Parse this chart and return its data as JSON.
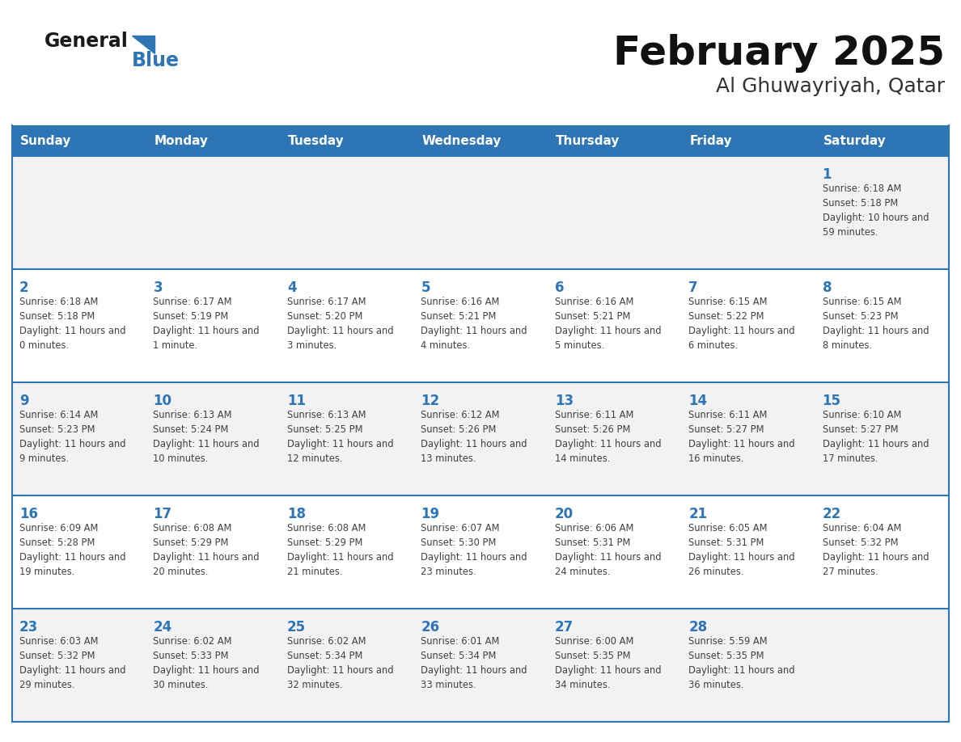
{
  "title": "February 2025",
  "subtitle": "Al Ghuwayriyah, Qatar",
  "days_of_week": [
    "Sunday",
    "Monday",
    "Tuesday",
    "Wednesday",
    "Thursday",
    "Friday",
    "Saturday"
  ],
  "header_bg": "#2E75B6",
  "header_text_color": "#FFFFFF",
  "row_bg_odd": "#F2F2F2",
  "row_bg_even": "#FFFFFF",
  "day_number_color": "#2E75B6",
  "text_color": "#404040",
  "border_color": "#2E75B6",
  "calendar_data": [
    [
      null,
      null,
      null,
      null,
      null,
      null,
      {
        "day": 1,
        "sunrise": "6:18 AM",
        "sunset": "5:18 PM",
        "daylight": "10 hours and 59 minutes."
      }
    ],
    [
      {
        "day": 2,
        "sunrise": "6:18 AM",
        "sunset": "5:18 PM",
        "daylight": "11 hours and 0 minutes."
      },
      {
        "day": 3,
        "sunrise": "6:17 AM",
        "sunset": "5:19 PM",
        "daylight": "11 hours and 1 minute."
      },
      {
        "day": 4,
        "sunrise": "6:17 AM",
        "sunset": "5:20 PM",
        "daylight": "11 hours and 3 minutes."
      },
      {
        "day": 5,
        "sunrise": "6:16 AM",
        "sunset": "5:21 PM",
        "daylight": "11 hours and 4 minutes."
      },
      {
        "day": 6,
        "sunrise": "6:16 AM",
        "sunset": "5:21 PM",
        "daylight": "11 hours and 5 minutes."
      },
      {
        "day": 7,
        "sunrise": "6:15 AM",
        "sunset": "5:22 PM",
        "daylight": "11 hours and 6 minutes."
      },
      {
        "day": 8,
        "sunrise": "6:15 AM",
        "sunset": "5:23 PM",
        "daylight": "11 hours and 8 minutes."
      }
    ],
    [
      {
        "day": 9,
        "sunrise": "6:14 AM",
        "sunset": "5:23 PM",
        "daylight": "11 hours and 9 minutes."
      },
      {
        "day": 10,
        "sunrise": "6:13 AM",
        "sunset": "5:24 PM",
        "daylight": "11 hours and 10 minutes."
      },
      {
        "day": 11,
        "sunrise": "6:13 AM",
        "sunset": "5:25 PM",
        "daylight": "11 hours and 12 minutes."
      },
      {
        "day": 12,
        "sunrise": "6:12 AM",
        "sunset": "5:26 PM",
        "daylight": "11 hours and 13 minutes."
      },
      {
        "day": 13,
        "sunrise": "6:11 AM",
        "sunset": "5:26 PM",
        "daylight": "11 hours and 14 minutes."
      },
      {
        "day": 14,
        "sunrise": "6:11 AM",
        "sunset": "5:27 PM",
        "daylight": "11 hours and 16 minutes."
      },
      {
        "day": 15,
        "sunrise": "6:10 AM",
        "sunset": "5:27 PM",
        "daylight": "11 hours and 17 minutes."
      }
    ],
    [
      {
        "day": 16,
        "sunrise": "6:09 AM",
        "sunset": "5:28 PM",
        "daylight": "11 hours and 19 minutes."
      },
      {
        "day": 17,
        "sunrise": "6:08 AM",
        "sunset": "5:29 PM",
        "daylight": "11 hours and 20 minutes."
      },
      {
        "day": 18,
        "sunrise": "6:08 AM",
        "sunset": "5:29 PM",
        "daylight": "11 hours and 21 minutes."
      },
      {
        "day": 19,
        "sunrise": "6:07 AM",
        "sunset": "5:30 PM",
        "daylight": "11 hours and 23 minutes."
      },
      {
        "day": 20,
        "sunrise": "6:06 AM",
        "sunset": "5:31 PM",
        "daylight": "11 hours and 24 minutes."
      },
      {
        "day": 21,
        "sunrise": "6:05 AM",
        "sunset": "5:31 PM",
        "daylight": "11 hours and 26 minutes."
      },
      {
        "day": 22,
        "sunrise": "6:04 AM",
        "sunset": "5:32 PM",
        "daylight": "11 hours and 27 minutes."
      }
    ],
    [
      {
        "day": 23,
        "sunrise": "6:03 AM",
        "sunset": "5:32 PM",
        "daylight": "11 hours and 29 minutes."
      },
      {
        "day": 24,
        "sunrise": "6:02 AM",
        "sunset": "5:33 PM",
        "daylight": "11 hours and 30 minutes."
      },
      {
        "day": 25,
        "sunrise": "6:02 AM",
        "sunset": "5:34 PM",
        "daylight": "11 hours and 32 minutes."
      },
      {
        "day": 26,
        "sunrise": "6:01 AM",
        "sunset": "5:34 PM",
        "daylight": "11 hours and 33 minutes."
      },
      {
        "day": 27,
        "sunrise": "6:00 AM",
        "sunset": "5:35 PM",
        "daylight": "11 hours and 34 minutes."
      },
      {
        "day": 28,
        "sunrise": "5:59 AM",
        "sunset": "5:35 PM",
        "daylight": "11 hours and 36 minutes."
      },
      null
    ]
  ]
}
